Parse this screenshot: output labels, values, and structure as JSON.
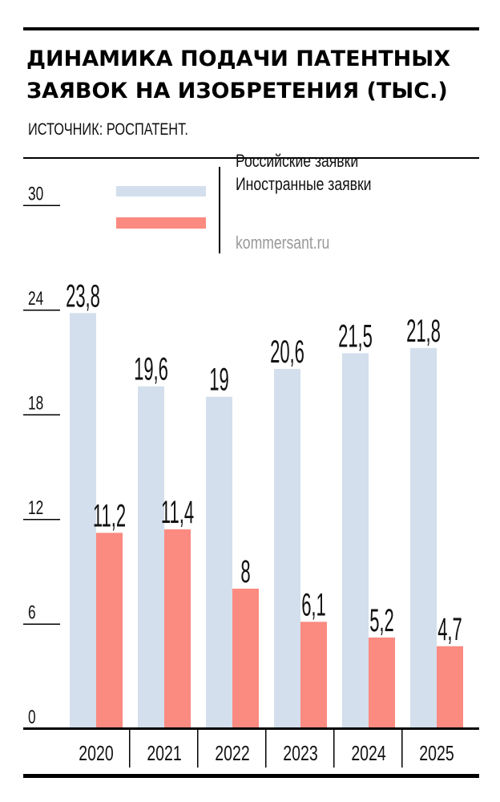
{
  "chart_data": {
    "type": "bar",
    "title_lines": [
      "ДИНАМИКА ПОДАЧИ ПАТЕНТНЫХ",
      "ЗАЯВОК НА ИЗОБРЕТЕНИЯ (ТЫС.)"
    ],
    "subtitle": "ИСТОЧНИК: РОСПАТЕНТ.",
    "watermark": "kommersant.ru",
    "categories": [
      "2020",
      "2021",
      "2022",
      "2023",
      "2024",
      "2025"
    ],
    "series": [
      {
        "name": "Российские заявки",
        "color": "#d3dfec",
        "values": [
          23.8,
          19.6,
          19,
          20.6,
          21.5,
          21.8
        ],
        "labels": [
          "23,8",
          "19,6",
          "19",
          "20,6",
          "21,5",
          "21,8"
        ]
      },
      {
        "name": "Иностранные заявки",
        "color": "#fb8a80",
        "values": [
          11.2,
          11.4,
          8,
          6.1,
          5.2,
          4.7
        ],
        "labels": [
          "11,2",
          "11,4",
          "8",
          "6,1",
          "5,2",
          "4,7"
        ]
      }
    ],
    "yticks": [
      0,
      6,
      12,
      18,
      24,
      30
    ],
    "ylim": [
      0,
      30
    ],
    "grid": false,
    "legend_placement": "top"
  }
}
